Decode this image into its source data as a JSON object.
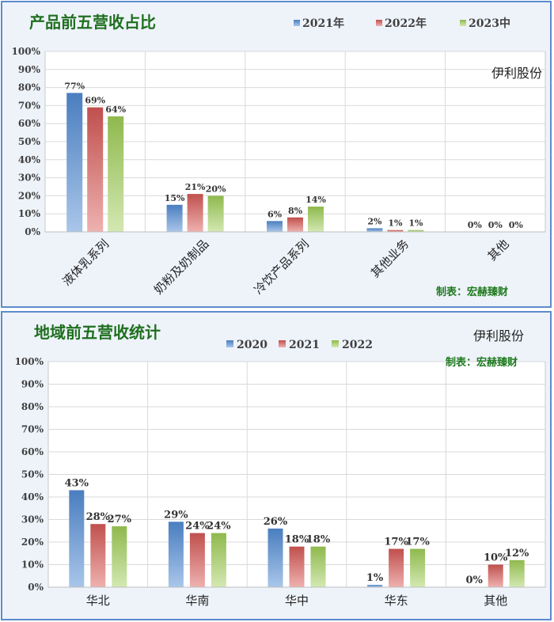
{
  "colors": {
    "s1": "#4a7ebf",
    "s1_light": "#a9c6ea",
    "s2": "#c0504d",
    "s2_light": "#eeb1af",
    "s3": "#8fb94d",
    "s3_light": "#d3e8b2"
  },
  "chart_data": [
    {
      "type": "bar",
      "title": "产品前五营收占比",
      "categories": [
        "液体乳系列",
        "奶粉及奶制品",
        "冷饮产品系列",
        "其他业务",
        "其他"
      ],
      "series": [
        {
          "name": "2021年",
          "values": [
            77,
            15,
            6,
            2,
            0
          ],
          "labels": [
            "77%",
            "15%",
            "6%",
            "2%",
            "0%"
          ]
        },
        {
          "name": "2022年",
          "values": [
            69,
            21,
            8,
            1,
            0
          ],
          "labels": [
            "69%",
            "21%",
            "8%",
            "1%",
            "0%"
          ]
        },
        {
          "name": "2023中",
          "values": [
            64,
            20,
            14,
            1,
            0
          ],
          "labels": [
            "64%",
            "20%",
            "14%",
            "1%",
            "0%"
          ]
        }
      ],
      "yticks": [
        "0%",
        "10%",
        "20%",
        "30%",
        "40%",
        "50%",
        "60%",
        "70%",
        "80%",
        "90%",
        "100%"
      ],
      "ylim": [
        0,
        100
      ],
      "grid": true,
      "legend": "top",
      "company": "伊利股份",
      "maker": "制表：宏赫臻财"
    },
    {
      "type": "bar",
      "title": "地域前五营收统计",
      "categories": [
        "华北",
        "华南",
        "华中",
        "华东",
        "其他"
      ],
      "series": [
        {
          "name": "2020",
          "values": [
            43,
            29,
            26,
            1,
            0
          ],
          "labels": [
            "43%",
            "29%",
            "26%",
            "1%",
            "0%"
          ]
        },
        {
          "name": "2021",
          "values": [
            28,
            24,
            18,
            17,
            10
          ],
          "labels": [
            "28%",
            "24%",
            "18%",
            "17%",
            "10%"
          ]
        },
        {
          "name": "2022",
          "values": [
            27,
            24,
            18,
            17,
            12
          ],
          "labels": [
            "27%",
            "24%",
            "18%",
            "17%",
            "12%"
          ]
        }
      ],
      "yticks": [
        "0%",
        "10%",
        "20%",
        "30%",
        "40%",
        "50%",
        "60%",
        "70%",
        "80%",
        "90%",
        "100%"
      ],
      "ylim": [
        0,
        100
      ],
      "grid": true,
      "legend": "top",
      "company": "伊利股份",
      "maker": "制表：宏赫臻财"
    }
  ]
}
